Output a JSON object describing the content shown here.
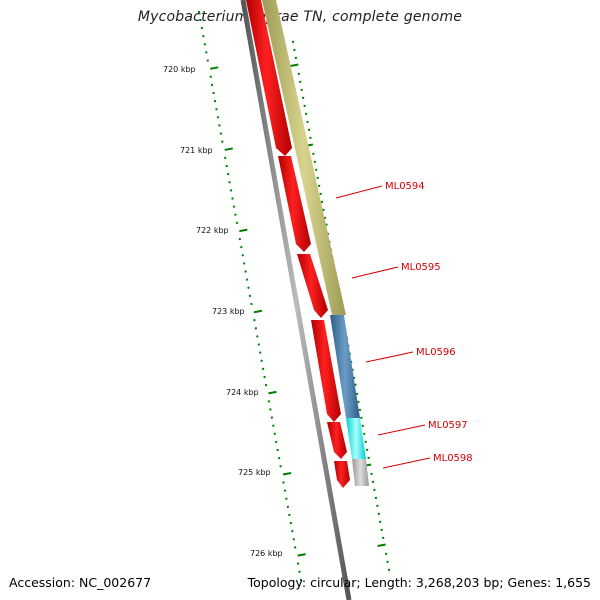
{
  "title": "Mycobacterium leprae TN, complete genome",
  "accession": "Accession: NC_002677",
  "summary": "Topology: circular; Length: 3,268,203 bp; Genes: 1,655",
  "ticks": [
    "720 kbp",
    "721 kbp",
    "722 kbp",
    "723 kbp",
    "724 kbp",
    "725 kbp",
    "726 kbp"
  ],
  "genes": [
    {
      "name": "ML0594",
      "color": "#bdb76b",
      "strand": "forward"
    },
    {
      "name": "ML0595",
      "color": "#bdb76b",
      "strand": "forward"
    },
    {
      "name": "ML0596",
      "color": "#4682b4",
      "strand": "forward"
    },
    {
      "name": "ML0597",
      "color": "#00ffff",
      "strand": "forward"
    },
    {
      "name": "ML0598",
      "color": "#bebebe",
      "strand": "forward"
    }
  ],
  "colors": {
    "cds": "#ff0000",
    "backbone": "#808080",
    "tick": "#008000",
    "label": "#d40000"
  }
}
